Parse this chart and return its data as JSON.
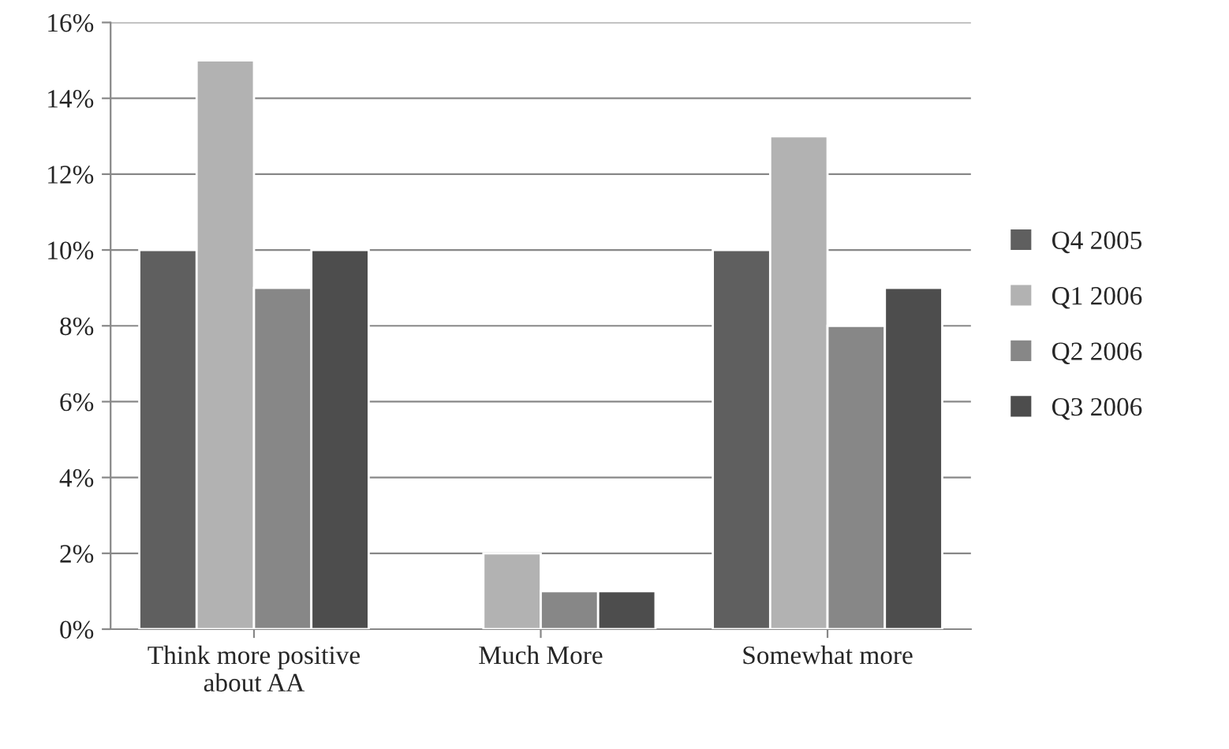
{
  "chart_data": {
    "type": "bar",
    "categories": [
      "Think more positive\nabout AA",
      "Much More",
      "Somewhat more"
    ],
    "series": [
      {
        "name": "Q4 2005",
        "color": "#5f5f5f",
        "values": [
          10,
          null,
          10
        ]
      },
      {
        "name": "Q1 2006",
        "color": "#b2b2b2",
        "values": [
          15,
          2,
          13
        ]
      },
      {
        "name": "Q2 2006",
        "color": "#878787",
        "values": [
          9,
          1,
          8
        ]
      },
      {
        "name": "Q3 2006",
        "color": "#4d4d4d",
        "values": [
          10,
          1,
          9
        ]
      }
    ],
    "ylim": [
      0,
      16
    ],
    "yticks": [
      {
        "value": 0,
        "label": "0%"
      },
      {
        "value": 2,
        "label": "2%"
      },
      {
        "value": 4,
        "label": "4%"
      },
      {
        "value": 6,
        "label": "6%"
      },
      {
        "value": 8,
        "label": "8%"
      },
      {
        "value": 10,
        "label": "10%"
      },
      {
        "value": 12,
        "label": "12%"
      },
      {
        "value": 14,
        "label": "14%"
      },
      {
        "value": 16,
        "label": "16%"
      }
    ],
    "grid": "y",
    "legend": "right"
  }
}
